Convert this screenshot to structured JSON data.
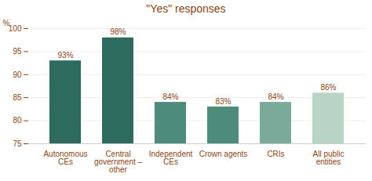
{
  "chart_data": {
    "type": "bar",
    "title": "\"Yes\" responses",
    "ylabel": "%",
    "categories": [
      "Autonomous\nCEs",
      "Central\ngovernment –\nother",
      "Independent\nCEs",
      "Crown agents",
      "CRIs",
      "All public\nentities"
    ],
    "values": [
      93,
      98,
      84,
      83,
      84,
      86
    ],
    "value_labels": [
      "93%",
      "98%",
      "84%",
      "83%",
      "84%",
      "86%"
    ],
    "data_labels": true,
    "colors": [
      "#2d6b5e",
      "#2d6b5e",
      "#4d8c7a",
      "#4d8c7a",
      "#7aab9a",
      "#b8d4c5"
    ],
    "ylim": [
      75,
      100
    ],
    "yticks": [
      75,
      80,
      85,
      90,
      95,
      100
    ],
    "grid": true
  }
}
